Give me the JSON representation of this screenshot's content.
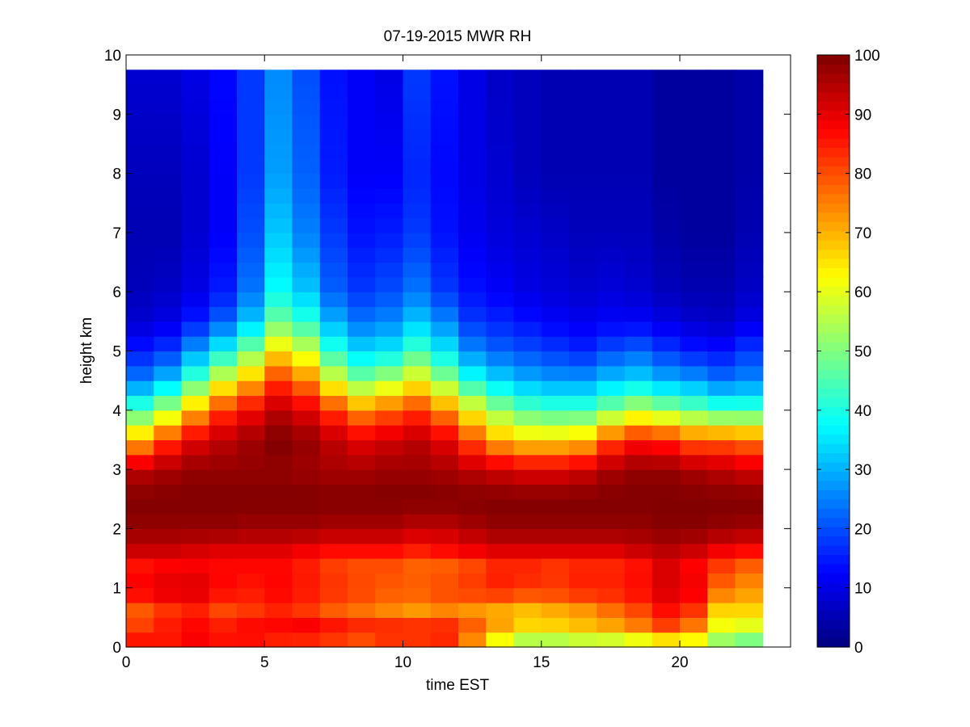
{
  "chart_data": {
    "type": "heatmap",
    "title": "07-19-2015 MWR RH",
    "xlabel": "time EST",
    "ylabel": "height km",
    "xlim": [
      0,
      24
    ],
    "ylim": [
      0,
      10
    ],
    "xticks": [
      0,
      5,
      10,
      15,
      20
    ],
    "yticks": [
      0,
      1,
      2,
      3,
      4,
      5,
      6,
      7,
      8,
      9,
      10
    ],
    "colorbar": {
      "min": 0,
      "max": 100,
      "ticks": [
        0,
        10,
        20,
        30,
        40,
        50,
        60,
        70,
        80,
        90,
        100
      ],
      "colormap": "jet"
    },
    "grid": false,
    "time_columns": [
      0.5,
      1.5,
      2.5,
      3.5,
      4.5,
      5.5,
      6.5,
      7.5,
      8.5,
      9.5,
      10.5,
      11.5,
      12.5,
      13.5,
      14.5,
      15.5,
      16.5,
      17.5,
      18.5,
      19.5,
      20.5,
      21.5,
      22.5
    ],
    "column_width_hours": 1,
    "height_max_km": 9.75,
    "height_bin_km": 0.25,
    "profile_levels_km": [
      0,
      0.3,
      0.6,
      1.0,
      1.3,
      1.6,
      2.0,
      2.5,
      3.0,
      3.5,
      4.0,
      4.5,
      5.0,
      5.5,
      6.0,
      7.0,
      8.0,
      9.75
    ],
    "rh_profiles": [
      [
        88,
        82,
        78,
        90,
        84,
        92,
        98,
        100,
        94,
        70,
        45,
        25,
        15,
        8,
        6,
        5,
        6,
        8
      ],
      [
        85,
        86,
        82,
        92,
        86,
        92,
        98,
        100,
        96,
        82,
        55,
        32,
        18,
        10,
        7,
        5,
        6,
        8
      ],
      [
        88,
        88,
        84,
        92,
        87,
        91,
        98,
        100,
        98,
        90,
        70,
        45,
        28,
        15,
        10,
        8,
        8,
        10
      ],
      [
        86,
        86,
        80,
        88,
        86,
        90,
        98,
        100,
        98,
        94,
        82,
        60,
        38,
        22,
        15,
        12,
        12,
        13
      ],
      [
        85,
        88,
        82,
        86,
        86,
        90,
        97,
        100,
        98,
        97,
        88,
        70,
        50,
        32,
        24,
        20,
        18,
        18
      ],
      [
        82,
        88,
        84,
        88,
        86,
        90,
        97,
        100,
        98,
        100,
        94,
        82,
        65,
        48,
        38,
        32,
        28,
        26
      ],
      [
        80,
        90,
        82,
        86,
        84,
        88,
        97,
        100,
        97,
        98,
        90,
        75,
        58,
        42,
        32,
        25,
        22,
        20
      ],
      [
        78,
        88,
        78,
        84,
        80,
        86,
        96,
        100,
        96,
        94,
        82,
        60,
        42,
        30,
        22,
        18,
        15,
        14
      ],
      [
        76,
        86,
        76,
        82,
        78,
        86,
        96,
        100,
        96,
        90,
        74,
        50,
        34,
        24,
        18,
        14,
        12,
        12
      ],
      [
        80,
        86,
        74,
        80,
        78,
        86,
        96,
        100,
        97,
        92,
        78,
        55,
        36,
        26,
        20,
        15,
        12,
        10
      ],
      [
        80,
        86,
        72,
        80,
        76,
        84,
        94,
        100,
        97,
        94,
        82,
        62,
        44,
        32,
        24,
        18,
        16,
        18
      ],
      [
        82,
        86,
        74,
        82,
        76,
        86,
        94,
        100,
        96,
        90,
        74,
        52,
        36,
        26,
        18,
        14,
        13,
        14
      ],
      [
        70,
        80,
        72,
        84,
        78,
        88,
        96,
        100,
        94,
        80,
        62,
        40,
        26,
        18,
        14,
        11,
        10,
        10
      ],
      [
        55,
        72,
        70,
        86,
        82,
        90,
        98,
        100,
        92,
        70,
        52,
        34,
        22,
        16,
        12,
        9,
        8,
        7
      ],
      [
        48,
        66,
        68,
        84,
        82,
        90,
        98,
        100,
        90,
        66,
        46,
        30,
        20,
        14,
        10,
        8,
        6,
        6
      ],
      [
        48,
        66,
        70,
        84,
        80,
        90,
        98,
        100,
        90,
        66,
        44,
        28,
        18,
        12,
        9,
        7,
        5,
        5
      ],
      [
        50,
        68,
        72,
        86,
        82,
        90,
        98,
        100,
        92,
        68,
        44,
        28,
        16,
        11,
        8,
        6,
        5,
        5
      ],
      [
        50,
        70,
        76,
        86,
        82,
        90,
        98,
        100,
        96,
        80,
        50,
        32,
        20,
        12,
        9,
        6,
        5,
        5
      ],
      [
        52,
        74,
        80,
        88,
        84,
        92,
        98,
        100,
        98,
        86,
        56,
        34,
        22,
        12,
        8,
        6,
        5,
        5
      ],
      [
        55,
        80,
        86,
        92,
        90,
        94,
        99,
        100,
        98,
        84,
        52,
        30,
        18,
        10,
        6,
        4,
        3,
        3
      ],
      [
        55,
        74,
        82,
        90,
        86,
        92,
        99,
        100,
        96,
        78,
        48,
        28,
        15,
        8,
        5,
        3,
        3,
        3
      ],
      [
        48,
        60,
        66,
        78,
        80,
        88,
        98,
        100,
        94,
        78,
        44,
        24,
        14,
        7,
        5,
        3,
        3,
        3
      ],
      [
        44,
        58,
        66,
        74,
        76,
        86,
        97,
        100,
        92,
        76,
        44,
        26,
        18,
        10,
        7,
        5,
        4,
        4
      ]
    ]
  }
}
